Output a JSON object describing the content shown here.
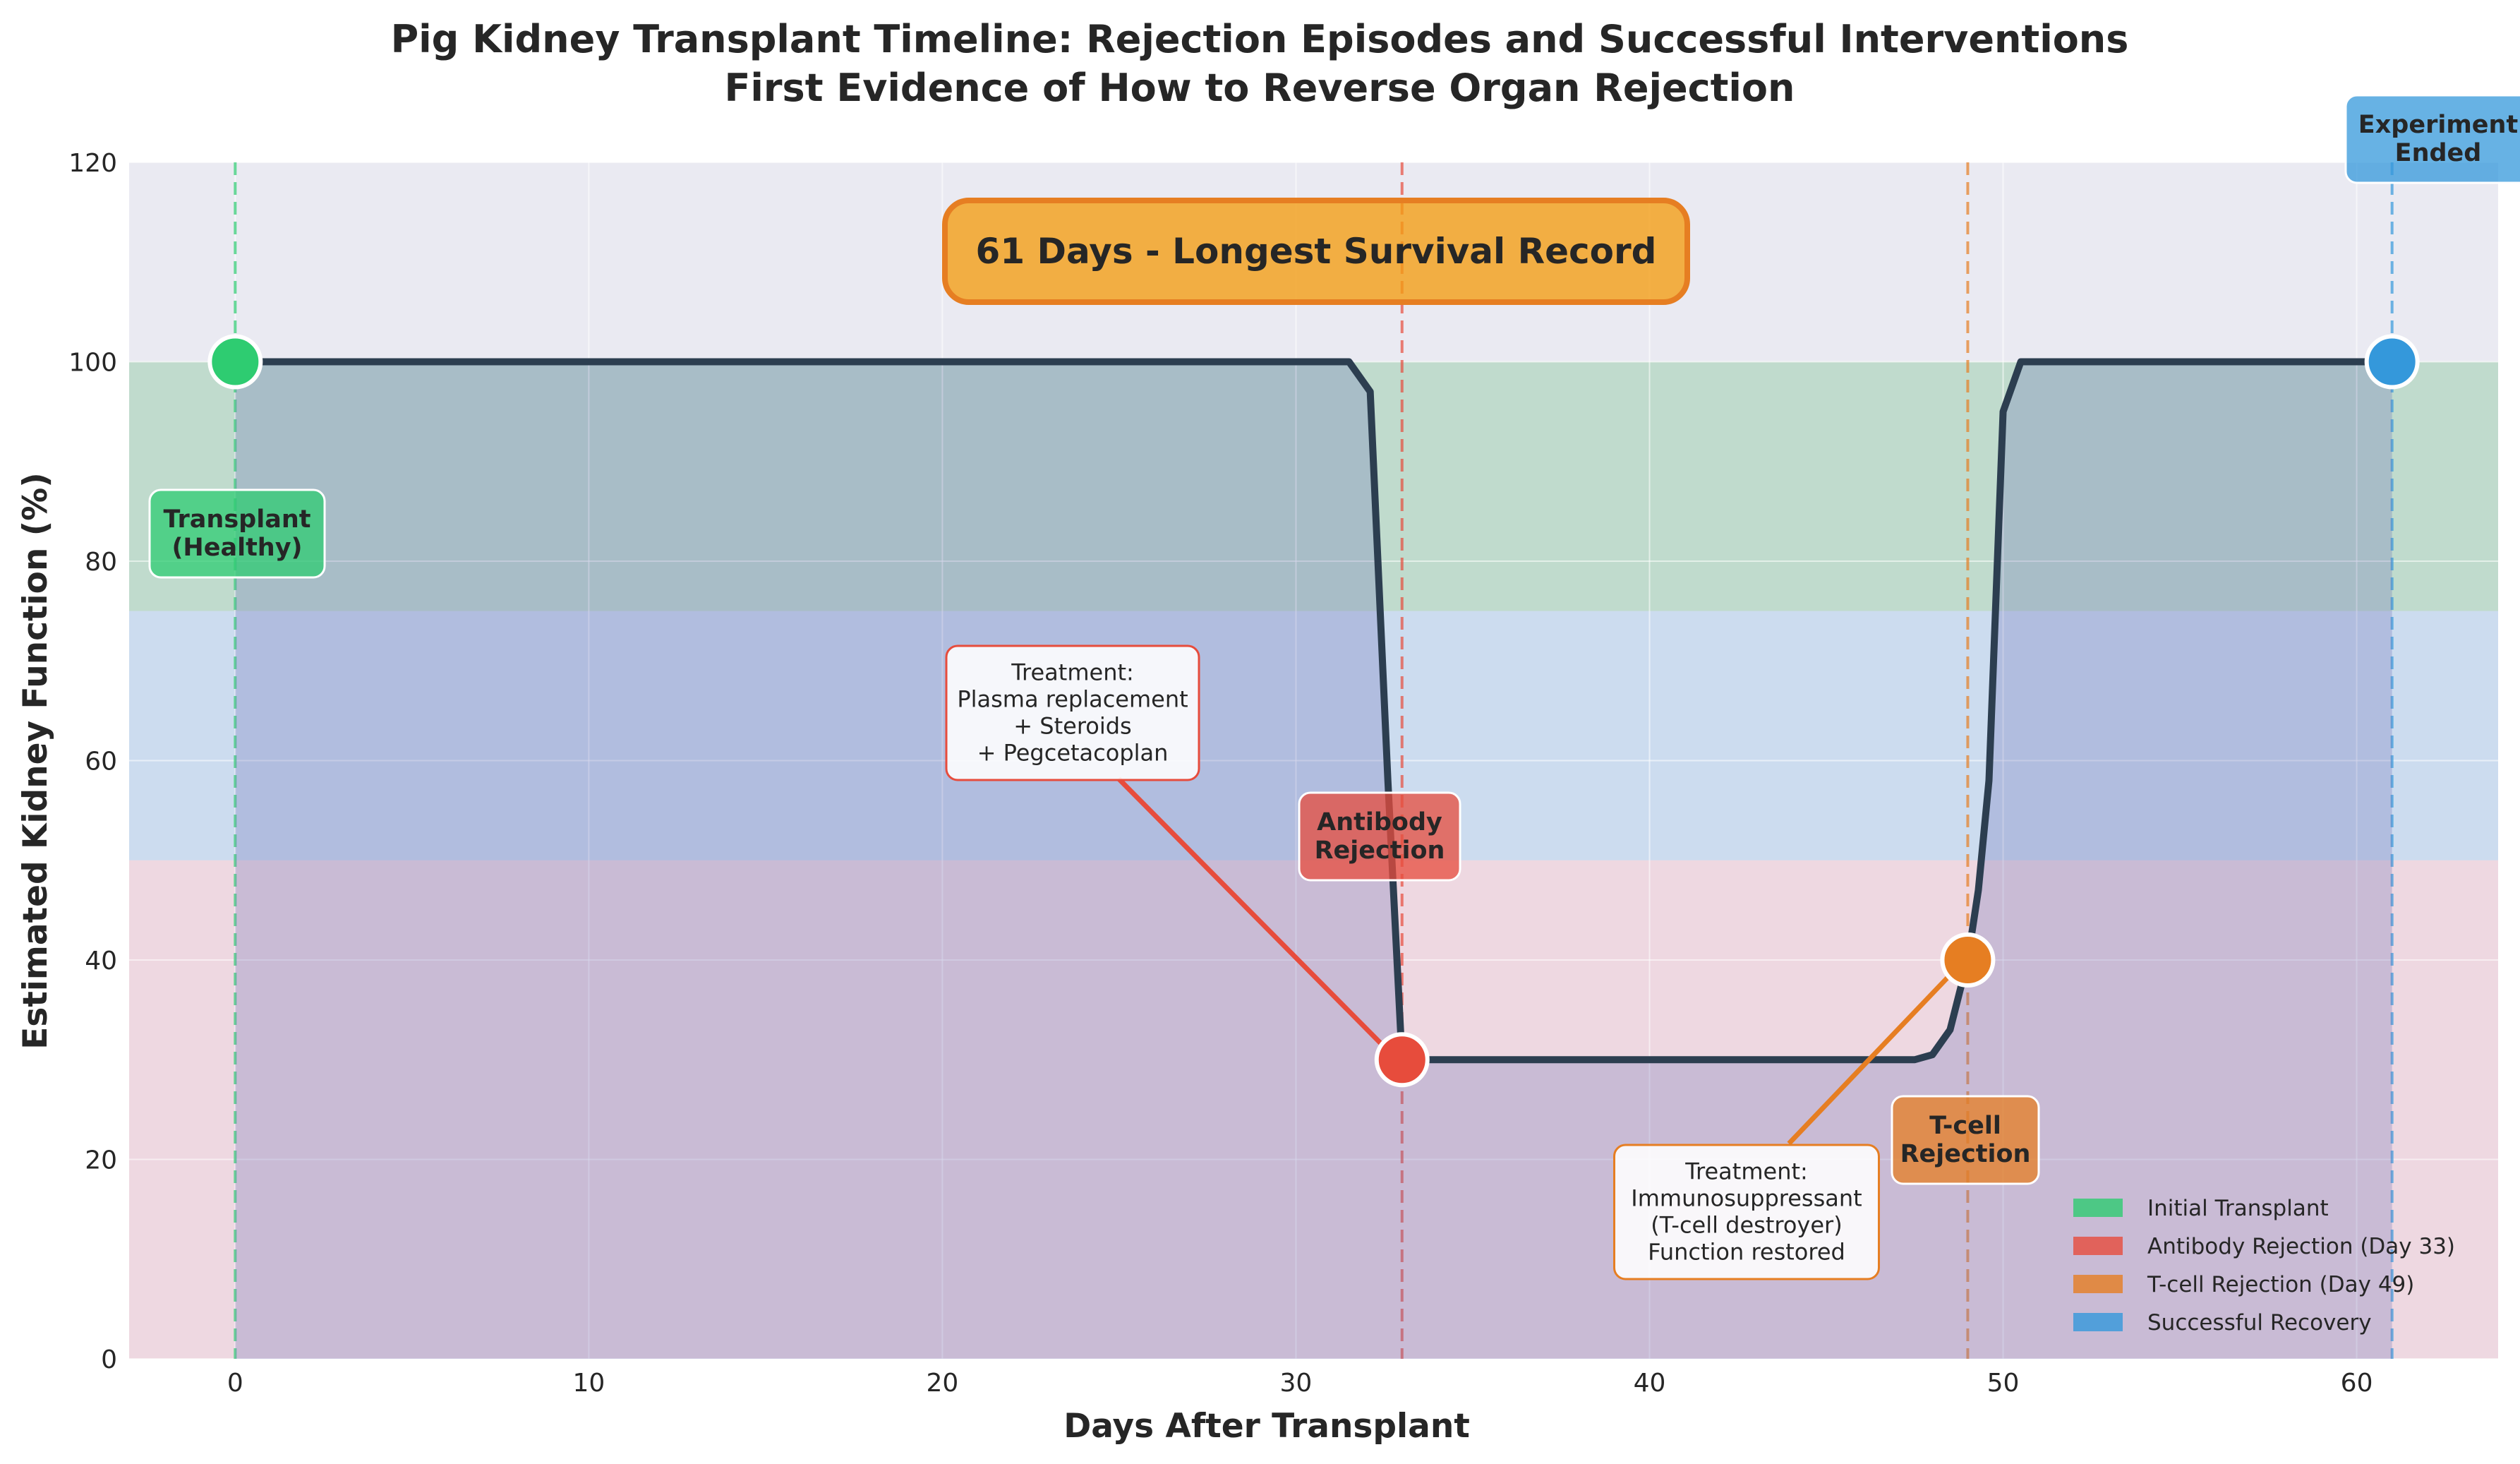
{
  "chart_data": {
    "type": "line",
    "title": "Pig Kidney Transplant Timeline: Rejection Episodes and Successful Interventions",
    "subtitle": "First Evidence of How to Reverse Organ Rejection",
    "xlabel": "Days After Transplant",
    "ylabel": "Estimated Kidney Function (%)",
    "xlim": [
      -3,
      64
    ],
    "ylim": [
      0,
      120
    ],
    "xticks": [
      0,
      10,
      20,
      30,
      40,
      50,
      60
    ],
    "yticks": [
      0,
      20,
      40,
      60,
      80,
      100,
      120
    ],
    "grid": true,
    "series": [
      {
        "x": [
          0,
          2,
          4,
          6,
          8,
          10,
          12,
          14,
          16,
          18,
          20,
          22,
          24,
          26,
          28,
          30,
          31.5,
          32.1,
          32.6,
          33,
          33.5,
          34,
          36,
          38,
          40,
          42,
          44,
          46,
          47.5,
          48,
          48.5,
          49,
          49.3,
          49.6,
          50,
          50.5,
          52,
          54,
          56,
          58,
          60,
          61
        ],
        "values": [
          100,
          100,
          100,
          100,
          100,
          100,
          100,
          100,
          100,
          100,
          100,
          100,
          100,
          100,
          100,
          100,
          100,
          97,
          58,
          30,
          30,
          30,
          30,
          30,
          30,
          30,
          30,
          30,
          30,
          30.5,
          33,
          40,
          47,
          58,
          95,
          100,
          100,
          100,
          100,
          100,
          100,
          100
        ]
      }
    ],
    "bands": [
      {
        "y0": 75,
        "y1": 100,
        "color": "#8fcaa0"
      },
      {
        "y0": 50,
        "y1": 75,
        "color": "#a9cdea"
      },
      {
        "y0": 0,
        "y1": 50,
        "color": "#f3c4cc"
      }
    ],
    "vlines": [
      {
        "x": 0,
        "color": "#2ecc71"
      },
      {
        "x": 33,
        "color": "#e74c3c"
      },
      {
        "x": 49,
        "color": "#e67e22"
      },
      {
        "x": 61,
        "color": "#3498db"
      }
    ],
    "events": [
      {
        "x": 0,
        "y": 100,
        "color": "#2ecc71",
        "label": "Transplant\n(Healthy)"
      },
      {
        "x": 33,
        "y": 30,
        "color": "#e74c3c",
        "label": "Antibody\nRejection"
      },
      {
        "x": 49,
        "y": 40,
        "color": "#e67e22",
        "label": "T-cell\nRejection"
      },
      {
        "x": 61,
        "y": 100,
        "color": "#3498db",
        "label": "Experiment\nEnded"
      }
    ],
    "treatments": [
      {
        "text": "Treatment:\nPlasma replacement\n+ Steroids\n+ Pegcetacoplan",
        "border": "#e74c3c"
      },
      {
        "text": "Treatment:\nImmunosuppressant\n(T-cell destroyer)\nFunction restored",
        "border": "#e67e22"
      }
    ],
    "record_label": "61 Days - Longest Survival Record",
    "legend_position": "lower-right",
    "legend": [
      {
        "label": "Initial Transplant",
        "color": "#2ecc71"
      },
      {
        "label": "Antibody Rejection (Day 33)",
        "color": "#e74c3c"
      },
      {
        "label": "T-cell Rejection (Day 49)",
        "color": "#e67e22"
      },
      {
        "label": "Successful Recovery",
        "color": "#3498db"
      }
    ],
    "line_color": "#2c3e50"
  }
}
